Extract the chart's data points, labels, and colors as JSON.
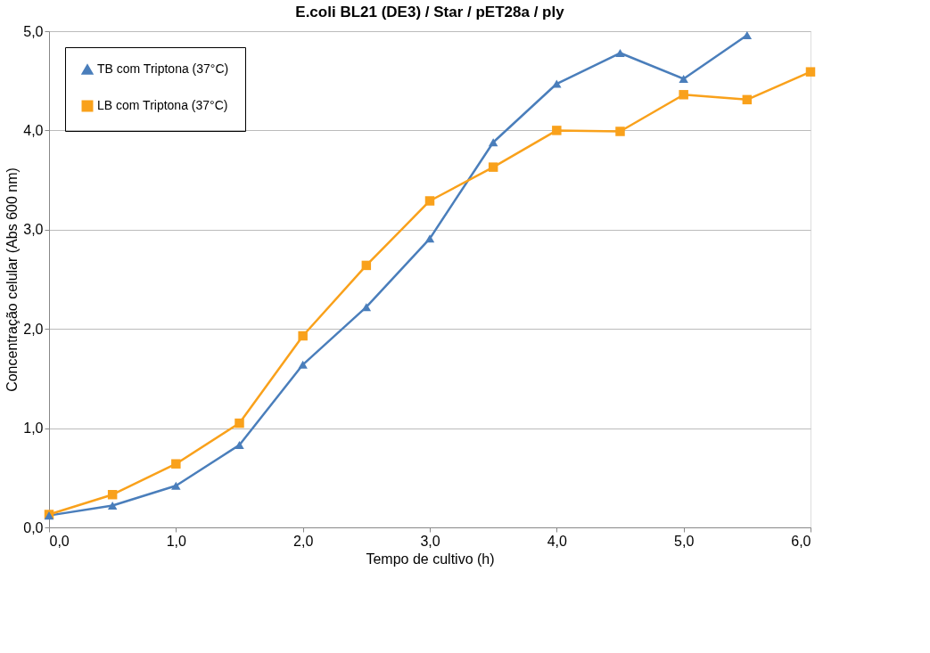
{
  "chart_data": {
    "type": "line",
    "title": "E.coli BL21 (DE3) / Star / pET28a / ply",
    "xlabel": "Tempo de cultivo (h)",
    "ylabel": "Concentração celular (Abs 600 nm)",
    "xlim": [
      0,
      6
    ],
    "ylim": [
      0,
      5
    ],
    "xticks": [
      {
        "value": 0,
        "label": "0,0"
      },
      {
        "value": 1,
        "label": "1,0"
      },
      {
        "value": 2,
        "label": "2,0"
      },
      {
        "value": 3,
        "label": "3,0"
      },
      {
        "value": 4,
        "label": "4,0"
      },
      {
        "value": 5,
        "label": "5,0"
      },
      {
        "value": 6,
        "label": "6,0"
      }
    ],
    "yticks": [
      {
        "value": 0,
        "label": "0,0"
      },
      {
        "value": 1,
        "label": "1,0"
      },
      {
        "value": 2,
        "label": "2,0"
      },
      {
        "value": 3,
        "label": "3,0"
      },
      {
        "value": 4,
        "label": "4,0"
      },
      {
        "value": 5,
        "label": "5,0"
      }
    ],
    "grid": "y",
    "legend": "top left",
    "line_style": "solid",
    "series": [
      {
        "name": "TB com Triptona (37°C)",
        "color": "#4a7ebb",
        "marker": "triangle",
        "x": [
          0,
          0.5,
          1,
          1.5,
          2,
          2.5,
          3,
          3.5,
          4,
          4.5,
          5,
          5.5
        ],
        "values": [
          0.12,
          0.22,
          0.42,
          0.83,
          1.64,
          2.22,
          2.91,
          3.88,
          4.47,
          4.78,
          4.52,
          4.96
        ]
      },
      {
        "name": "LB com Triptona (37°C)",
        "color": "#f9a11b",
        "marker": "square",
        "x": [
          0,
          0.5,
          1,
          1.5,
          2,
          2.5,
          3,
          3.5,
          4,
          4.5,
          5,
          5.5,
          6
        ],
        "values": [
          0.13,
          0.33,
          0.64,
          1.05,
          1.93,
          2.64,
          3.29,
          3.63,
          4.0,
          3.99,
          4.36,
          4.31,
          4.59
        ]
      }
    ]
  }
}
